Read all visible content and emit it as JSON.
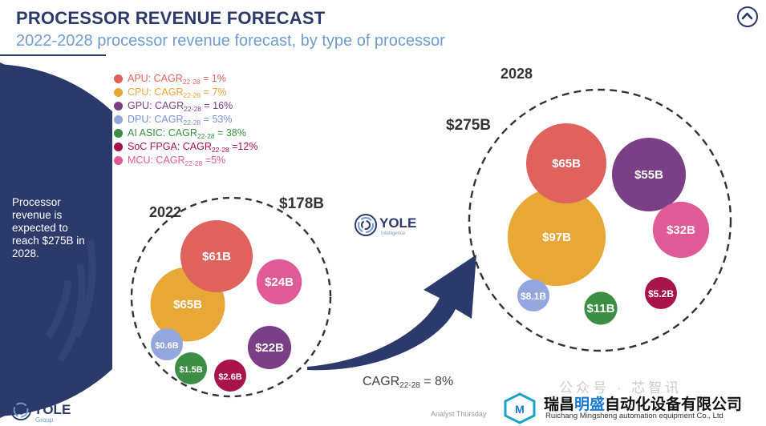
{
  "header": {
    "title": "PROCESSOR REVENUE FORECAST",
    "subtitle": "2022-2028 processor revenue forecast, by type of processor"
  },
  "side_panel": {
    "text": "Processor revenue is expected to reach $275B in 2028."
  },
  "legend": [
    {
      "name": "APU",
      "cagr_label": "CAGR",
      "cagr_sub": "22-28",
      "cagr_value": " = 1%",
      "color": "#e0625e"
    },
    {
      "name": "CPU",
      "cagr_label": "CAGR",
      "cagr_sub": "22-28",
      "cagr_value": " = 7%",
      "color": "#e8a838"
    },
    {
      "name": "GPU",
      "cagr_label": "CAGR",
      "cagr_sub": "22-28",
      "cagr_value": " = 16%",
      "color": "#7b3f86"
    },
    {
      "name": "DPU",
      "cagr_label": "CAGR",
      "cagr_sub": "22-28",
      "cagr_value": " = 53%",
      "color": "#93a6dd"
    },
    {
      "name": "AI ASIC",
      "cagr_label": "CAGR",
      "cagr_sub": "22-28",
      "cagr_value": " = 38%",
      "color": "#3c8e44"
    },
    {
      "name": "SoC FPGA",
      "cagr_label": "CAGR",
      "cagr_sub": "22-28",
      "cagr_value": " =12%",
      "color": "#a8134a"
    },
    {
      "name": "MCU",
      "cagr_label": "CAGR",
      "cagr_sub": "22-28",
      "cagr_value": " =5%",
      "color": "#e05a97"
    }
  ],
  "cagr_total": {
    "label": "CAGR",
    "sub": "22-28",
    "value": " = 8%"
  },
  "logo": {
    "word": "YOLE",
    "sub_mid": "Intelligence",
    "sub_foot": "Group"
  },
  "top_button_icon": "chevron-up-icon",
  "footer": {
    "analyst": "Analyst Thursday",
    "watermark": "公众号 · 芯智讯",
    "company_cn_1": "瑞昌",
    "company_cn_hl": "明盛",
    "company_cn_2": "自动化设备有限公司",
    "company_en": "Ruichang Mingsheng automation equipment Co., Ltd"
  },
  "chart_data": [
    {
      "type": "bubble",
      "year": "2022",
      "total_label": "$178B",
      "total": 178,
      "unit": "$B",
      "segments": [
        {
          "name": "CPU",
          "value": 65,
          "label": "$65B",
          "color": "#e8a838"
        },
        {
          "name": "APU",
          "value": 61,
          "label": "$61B",
          "color": "#e0625e"
        },
        {
          "name": "MCU",
          "value": 24,
          "label": "$24B",
          "color": "#e05a97"
        },
        {
          "name": "GPU",
          "value": 22,
          "label": "$22B",
          "color": "#7b3f86"
        },
        {
          "name": "SoC FPGA",
          "value": 2.6,
          "label": "$2.6B",
          "color": "#a8134a"
        },
        {
          "name": "AI ASIC",
          "value": 1.5,
          "label": "$1.5B",
          "color": "#3c8e44"
        },
        {
          "name": "DPU",
          "value": 0.6,
          "label": "$0.6B",
          "color": "#93a6dd"
        }
      ]
    },
    {
      "type": "bubble",
      "year": "2028",
      "total_label": "$275B",
      "total": 275,
      "unit": "$B",
      "segments": [
        {
          "name": "CPU",
          "value": 97,
          "label": "$97B",
          "color": "#e8a838"
        },
        {
          "name": "APU",
          "value": 65,
          "label": "$65B",
          "color": "#e0625e"
        },
        {
          "name": "GPU",
          "value": 55,
          "label": "$55B",
          "color": "#7b3f86"
        },
        {
          "name": "MCU",
          "value": 32,
          "label": "$32B",
          "color": "#e05a97"
        },
        {
          "name": "AI ASIC",
          "value": 11,
          "label": "$11B",
          "color": "#3c8e44"
        },
        {
          "name": "DPU",
          "value": 8.1,
          "label": "$8.1B",
          "color": "#93a6dd"
        },
        {
          "name": "SoC FPGA",
          "value": 5.2,
          "label": "$5.2B",
          "color": "#a8134a"
        }
      ]
    }
  ]
}
